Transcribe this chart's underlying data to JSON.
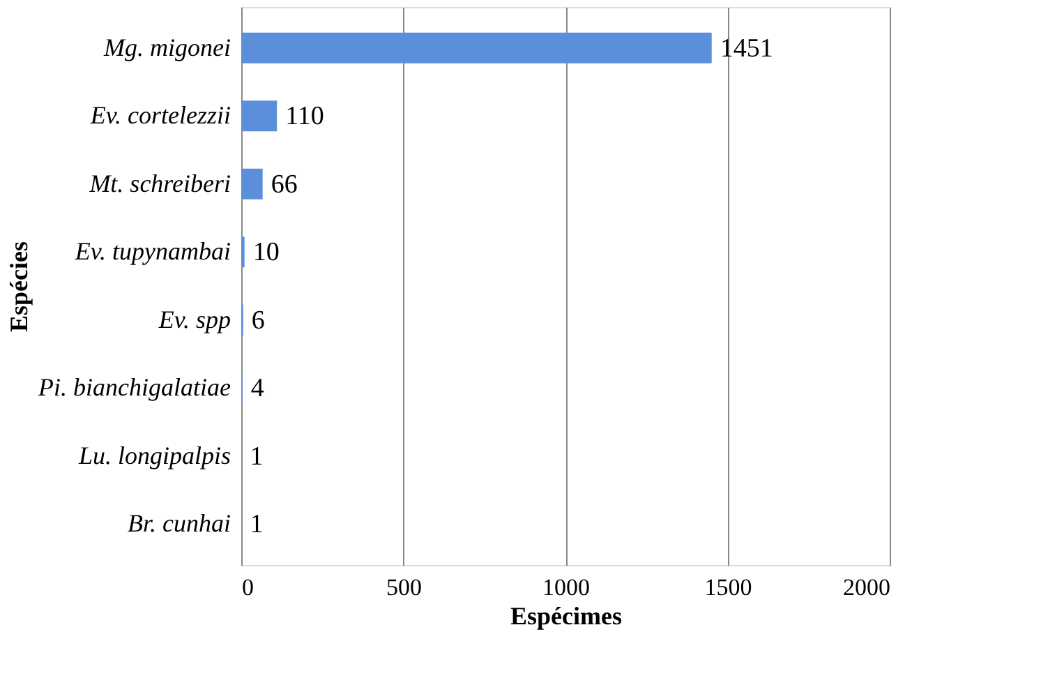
{
  "chart_data": {
    "type": "bar",
    "orientation": "horizontal",
    "xlabel": "Espécimes",
    "ylabel": "Espécies",
    "categories": [
      "Mg. migonei",
      "Ev. cortelezzii",
      "Mt. schreiberi",
      "Ev. tupynambai",
      "Ev. spp",
      "Pi. bianchigalatiae",
      "Lu. longipalpis",
      "Br. cunhai"
    ],
    "values": [
      1451,
      110,
      66,
      10,
      6,
      4,
      1,
      1
    ],
    "color": "#5b8fd9",
    "xlim": [
      0,
      2000
    ],
    "xticks": [
      0,
      500,
      1000,
      1500,
      2000
    ],
    "grid": "x",
    "data_labels": true
  }
}
